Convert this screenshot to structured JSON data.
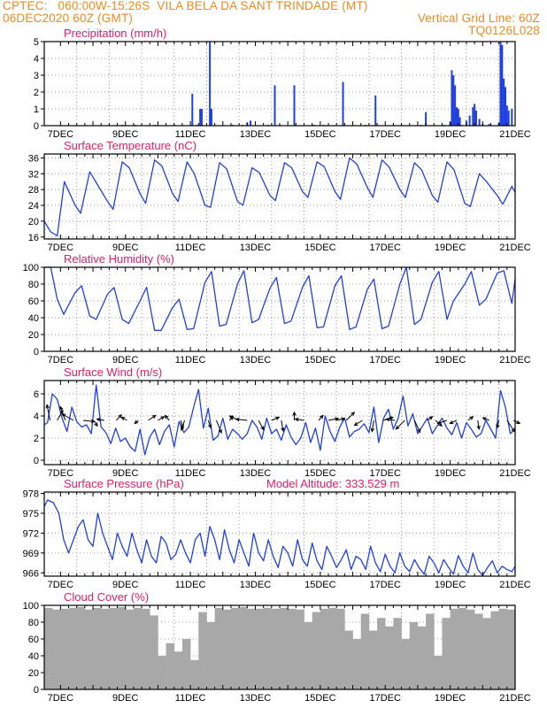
{
  "header": {
    "line1_left": "CPTEC:   060:00W-15:26S  VILA BELA DA SANT TRINDADE (MT)",
    "line2_left": "06DEC2020 60Z (GMT)",
    "line2_right": "Vertical Grid Line: 60Z",
    "line3_right": "TQ0126L028"
  },
  "colors": {
    "header": "#f08a1e",
    "panel_title": "#e0206a",
    "series": "#2040e0",
    "cloud": "#a8a8a8",
    "arrow": "#000000"
  },
  "x_axis": {
    "tick_labels": [
      "7DEC",
      "9DEC",
      "11DEC",
      "13DEC",
      "15DEC",
      "17DEC",
      "19DEC",
      "21DEC"
    ],
    "tick_days": [
      7,
      9,
      11,
      13,
      15,
      17,
      19,
      21
    ],
    "range_days": [
      6.5,
      21.0
    ]
  },
  "chart_data": [
    {
      "type": "bar",
      "title": "Precipitation (mm/h)",
      "ylim": [
        0,
        5
      ],
      "yticks": [
        0,
        1,
        2,
        3,
        4,
        5
      ],
      "x_days": [
        8.9,
        9.3,
        9.9,
        10.5,
        11.06,
        11.2,
        11.3,
        11.35,
        11.6,
        11.65,
        12.3,
        12.6,
        12.75,
        12.85,
        13.4,
        13.6,
        14.2,
        14.8,
        15.1,
        15.7,
        16.4,
        16.7,
        17.5,
        18.1,
        18.25,
        18.8,
        19.0,
        19.05,
        19.1,
        19.15,
        19.2,
        19.25,
        19.3,
        19.35,
        19.5,
        19.6,
        19.7,
        19.75,
        19.8,
        19.9,
        20.0,
        20.2,
        20.5,
        20.55,
        20.6,
        20.65,
        20.7,
        20.75,
        20.8,
        20.9
      ],
      "values": [
        0.05,
        0.05,
        0.05,
        0.05,
        1.9,
        0.05,
        1.0,
        1.0,
        5.0,
        1.0,
        0.05,
        0.05,
        0.2,
        0.3,
        0.05,
        2.4,
        2.4,
        0.05,
        0.05,
        2.6,
        0.05,
        1.8,
        0.05,
        0.05,
        0.8,
        0.05,
        0.2,
        3.3,
        3.0,
        2.4,
        1.1,
        1.0,
        0.5,
        0.05,
        0.3,
        0.6,
        1.1,
        1.3,
        0.9,
        0.4,
        0.1,
        0.1,
        0.2,
        5.0,
        4.8,
        2.8,
        2.3,
        1.2,
        0.9,
        1.0
      ]
    },
    {
      "type": "line",
      "title": "Surface Temperature (nC)",
      "ylim": [
        15.5,
        37
      ],
      "yticks": [
        16,
        20,
        24,
        28,
        32,
        36
      ],
      "x_days": [
        6.5,
        6.7,
        6.9,
        7.12,
        7.45,
        7.62,
        7.9,
        8.12,
        8.45,
        8.62,
        8.9,
        9.12,
        9.45,
        9.62,
        9.9,
        10.12,
        10.45,
        10.62,
        10.9,
        11.12,
        11.45,
        11.62,
        11.9,
        12.12,
        12.45,
        12.62,
        12.9,
        13.12,
        13.45,
        13.62,
        13.9,
        14.12,
        14.45,
        14.62,
        14.9,
        15.12,
        15.45,
        15.62,
        15.9,
        16.12,
        16.45,
        16.62,
        16.9,
        17.12,
        17.45,
        17.62,
        17.9,
        18.12,
        18.45,
        18.62,
        18.9,
        19.12,
        19.45,
        19.62,
        19.9,
        20.12,
        20.45,
        20.62,
        20.9,
        21.0
      ],
      "values": [
        20.0,
        17.3,
        16.3,
        30.0,
        24.0,
        22.0,
        32.5,
        29.5,
        25.0,
        23.0,
        35.0,
        33.5,
        27.0,
        24.5,
        35.5,
        34.0,
        27.0,
        25.0,
        35.0,
        32.0,
        24.0,
        23.5,
        34.8,
        33.2,
        25.0,
        24.0,
        33.5,
        32.3,
        26.5,
        25.2,
        34.8,
        33.5,
        27.5,
        26.0,
        35.0,
        33.8,
        27.5,
        25.5,
        36.0,
        34.5,
        28.5,
        26.0,
        35.5,
        33.7,
        28.0,
        26.0,
        34.8,
        33.0,
        26.5,
        24.8,
        35.0,
        33.0,
        24.5,
        23.7,
        32.0,
        30.0,
        26.5,
        24.3,
        28.8,
        27.3
      ]
    },
    {
      "type": "line",
      "title": "Relative Humidity (%)",
      "ylim": [
        0,
        100
      ],
      "yticks": [
        0,
        20,
        40,
        60,
        80,
        100
      ],
      "x_days": [
        6.5,
        6.7,
        6.9,
        7.1,
        7.45,
        7.65,
        7.9,
        8.1,
        8.45,
        8.65,
        8.9,
        9.1,
        9.45,
        9.65,
        9.9,
        10.1,
        10.45,
        10.65,
        10.9,
        11.1,
        11.45,
        11.65,
        11.9,
        12.1,
        12.45,
        12.65,
        12.9,
        13.1,
        13.45,
        13.65,
        13.9,
        14.1,
        14.45,
        14.65,
        14.9,
        15.1,
        15.45,
        15.65,
        15.9,
        16.1,
        16.45,
        16.65,
        16.9,
        17.1,
        17.45,
        17.65,
        17.9,
        18.1,
        18.45,
        18.65,
        18.9,
        19.1,
        19.45,
        19.65,
        19.9,
        20.1,
        20.45,
        20.65,
        20.9,
        21.0
      ],
      "values": [
        100,
        100,
        62,
        44,
        70,
        78,
        42,
        38,
        68,
        76,
        38,
        33,
        60,
        76,
        25,
        25,
        52,
        62,
        26,
        27,
        82,
        95,
        30,
        32,
        80,
        96,
        34,
        38,
        75,
        88,
        33,
        36,
        76,
        90,
        28,
        29,
        78,
        90,
        26,
        29,
        74,
        86,
        27,
        30,
        80,
        100,
        32,
        38,
        82,
        95,
        38,
        60,
        80,
        95,
        55,
        62,
        93,
        96,
        57,
        86
      ]
    },
    {
      "type": "line",
      "title": "Surface Wind (m/s)",
      "ylim": [
        -0.4,
        7.2
      ],
      "yticks": [
        0,
        2,
        4,
        6
      ],
      "x_days": [
        6.5,
        6.6,
        6.75,
        6.9,
        7.05,
        7.2,
        7.35,
        7.5,
        7.65,
        7.8,
        7.95,
        8.1,
        8.25,
        8.4,
        8.55,
        8.7,
        8.85,
        9.0,
        9.15,
        9.3,
        9.45,
        9.6,
        9.75,
        9.9,
        10.05,
        10.2,
        10.35,
        10.5,
        10.65,
        10.8,
        10.95,
        11.1,
        11.25,
        11.4,
        11.55,
        11.7,
        11.85,
        12.0,
        12.15,
        12.3,
        12.45,
        12.6,
        12.75,
        12.9,
        13.05,
        13.2,
        13.35,
        13.5,
        13.65,
        13.8,
        13.95,
        14.1,
        14.25,
        14.4,
        14.55,
        14.7,
        14.85,
        15.0,
        15.15,
        15.3,
        15.45,
        15.6,
        15.75,
        15.9,
        16.05,
        16.2,
        16.35,
        16.5,
        16.65,
        16.8,
        16.95,
        17.1,
        17.25,
        17.4,
        17.55,
        17.7,
        17.85,
        18.0,
        18.15,
        18.3,
        18.45,
        18.6,
        18.75,
        18.9,
        19.05,
        19.2,
        19.35,
        19.5,
        19.65,
        19.8,
        19.95,
        20.1,
        20.25,
        20.4,
        20.55,
        20.7,
        20.85,
        21.0
      ],
      "values": [
        3.2,
        3.4,
        6.0,
        5.5,
        3.8,
        2.6,
        4.8,
        3.5,
        3.0,
        3.2,
        2.4,
        6.8,
        3.0,
        2.5,
        1.5,
        2.9,
        1.7,
        2.0,
        1.2,
        0.8,
        2.8,
        0.5,
        2.1,
        2.8,
        1.4,
        2.6,
        3.2,
        1.2,
        3.5,
        2.5,
        3.0,
        4.8,
        6.4,
        2.9,
        4.7,
        1.8,
        2.2,
        3.8,
        1.9,
        2.8,
        2.4,
        1.9,
        2.4,
        3.6,
        3.0,
        1.9,
        3.8,
        2.4,
        2.8,
        1.8,
        3.2,
        2.1,
        1.4,
        2.0,
        3.4,
        1.6,
        2.9,
        0.9,
        4.0,
        2.6,
        1.7,
        3.0,
        3.8,
        2.1,
        2.6,
        2.8,
        3.3,
        2.5,
        4.8,
        1.6,
        3.8,
        4.6,
        2.8,
        3.8,
        5.8,
        3.1,
        4.2,
        2.4,
        3.1,
        3.8,
        2.4,
        3.1,
        3.8,
        2.9,
        2.3,
        3.4,
        2.0,
        3.4,
        2.8,
        2.1,
        2.4,
        3.6,
        2.8,
        2.0,
        6.3,
        4.8,
        2.4,
        2.8
      ],
      "arrows": [
        {
          "day": 6.68,
          "u": -0.5,
          "v": 2.5
        },
        {
          "day": 6.9,
          "u": 0.9,
          "v": 1.6
        },
        {
          "day": 7.15,
          "u": -0.8,
          "v": 2.2
        },
        {
          "day": 7.4,
          "u": -1.8,
          "v": 1.0
        },
        {
          "day": 7.7,
          "u": 1.8,
          "v": -0.2
        },
        {
          "day": 8.02,
          "u": 0.6,
          "v": -0.9
        },
        {
          "day": 8.35,
          "u": -1.2,
          "v": 0.2
        },
        {
          "day": 8.72,
          "u": 0.8,
          "v": 0.9
        },
        {
          "day": 9.05,
          "u": -0.9,
          "v": 0.5
        },
        {
          "day": 9.4,
          "u": -0.6,
          "v": -0.5
        },
        {
          "day": 9.7,
          "u": 1.2,
          "v": 0.8
        },
        {
          "day": 10.0,
          "u": 1.0,
          "v": 0.6
        },
        {
          "day": 10.35,
          "u": -0.7,
          "v": 0.8
        },
        {
          "day": 10.7,
          "u": 0.4,
          "v": -1.2
        },
        {
          "day": 10.82,
          "u": -0.5,
          "v": -1.6
        },
        {
          "day": 11.55,
          "u": 0.4,
          "v": -1.2
        },
        {
          "day": 11.8,
          "u": 0.8,
          "v": -2.0
        },
        {
          "day": 12.2,
          "u": 0.6,
          "v": 0.6
        },
        {
          "day": 12.5,
          "u": -1.5,
          "v": 0.7
        },
        {
          "day": 12.75,
          "u": -1.8,
          "v": 0.2
        },
        {
          "day": 13.1,
          "u": 0.8,
          "v": -1.5
        },
        {
          "day": 13.5,
          "u": 1.2,
          "v": 0.5
        },
        {
          "day": 13.8,
          "u": 0.3,
          "v": -1.7
        },
        {
          "day": 14.2,
          "u": 0.0,
          "v": 1.3
        },
        {
          "day": 14.5,
          "u": -1.4,
          "v": 0.2
        },
        {
          "day": 14.95,
          "u": 0.7,
          "v": 0.8
        },
        {
          "day": 15.25,
          "u": 1.6,
          "v": 0.3
        },
        {
          "day": 15.5,
          "u": 1.3,
          "v": 0.3
        },
        {
          "day": 15.8,
          "u": 1.3,
          "v": 1.3
        },
        {
          "day": 16.3,
          "u": -1.3,
          "v": -0.8
        },
        {
          "day": 16.65,
          "u": -0.3,
          "v": -1.8
        },
        {
          "day": 16.95,
          "u": 1.5,
          "v": 0.5
        },
        {
          "day": 17.3,
          "u": -1.4,
          "v": 0.2
        },
        {
          "day": 17.6,
          "u": -1.4,
          "v": -1.4
        },
        {
          "day": 17.9,
          "u": 0.9,
          "v": -1.9
        },
        {
          "day": 18.3,
          "u": 0.8,
          "v": 0.6
        },
        {
          "day": 18.55,
          "u": 1.0,
          "v": -0.9
        },
        {
          "day": 18.9,
          "u": -1.5,
          "v": -0.5
        },
        {
          "day": 19.2,
          "u": -1.1,
          "v": -0.5
        },
        {
          "day": 19.55,
          "u": 0.8,
          "v": 0.6
        },
        {
          "day": 19.85,
          "u": 0.2,
          "v": -1.4
        },
        {
          "day": 20.2,
          "u": -1.0,
          "v": 0.4
        },
        {
          "day": 20.5,
          "u": -0.3,
          "v": -1.2
        },
        {
          "day": 20.75,
          "u": 1.2,
          "v": -1.8
        },
        {
          "day": 20.95,
          "u": 1.0,
          "v": -0.5
        }
      ]
    },
    {
      "type": "line",
      "title": "Surface Pressure (hPa)",
      "subtitle": "Model Altitude: 333.529 m",
      "ylim": [
        965.5,
        978.2
      ],
      "yticks": [
        966,
        969,
        972,
        975,
        978
      ],
      "ytick_labels": [
        "966",
        "969",
        "972",
        "975",
        "978"
      ],
      "x_days": [
        6.5,
        6.6,
        6.78,
        6.95,
        7.1,
        7.25,
        7.4,
        7.55,
        7.7,
        7.85,
        8.0,
        8.15,
        8.3,
        8.45,
        8.6,
        8.75,
        8.9,
        9.05,
        9.2,
        9.35,
        9.5,
        9.65,
        9.8,
        9.95,
        10.1,
        10.25,
        10.4,
        10.55,
        10.7,
        10.85,
        11.0,
        11.15,
        11.3,
        11.45,
        11.6,
        11.75,
        11.9,
        12.05,
        12.2,
        12.35,
        12.5,
        12.65,
        12.8,
        12.95,
        13.1,
        13.25,
        13.4,
        13.55,
        13.7,
        13.85,
        14.0,
        14.15,
        14.3,
        14.45,
        14.6,
        14.75,
        14.9,
        15.05,
        15.2,
        15.35,
        15.5,
        15.65,
        15.8,
        15.95,
        16.1,
        16.25,
        16.4,
        16.55,
        16.7,
        16.85,
        17.0,
        17.15,
        17.3,
        17.45,
        17.6,
        17.75,
        17.9,
        18.05,
        18.2,
        18.35,
        18.5,
        18.65,
        18.8,
        18.95,
        19.1,
        19.25,
        19.4,
        19.55,
        19.7,
        19.85,
        20.0,
        20.15,
        20.3,
        20.45,
        20.6,
        20.75,
        20.9,
        21.0
      ],
      "values": [
        976.0,
        977.0,
        976.6,
        975.0,
        971.0,
        969.0,
        971.0,
        973.0,
        974.0,
        971.0,
        970.0,
        975.0,
        972.0,
        970.0,
        968.0,
        972.0,
        970.0,
        968.5,
        972.0,
        969.5,
        967.5,
        971.0,
        968.5,
        967.5,
        971.5,
        970.5,
        968.0,
        968.8,
        971.0,
        969.0,
        967.5,
        971.0,
        972.0,
        968.5,
        973.0,
        971.0,
        968.0,
        972.5,
        969.5,
        967.5,
        971.0,
        969.0,
        967.0,
        972.0,
        969.0,
        967.8,
        971.0,
        968.5,
        966.8,
        970.0,
        969.0,
        967.0,
        971.0,
        968.0,
        967.0,
        970.5,
        967.8,
        966.5,
        970.0,
        968.5,
        966.8,
        968.0,
        969.5,
        966.5,
        968.5,
        968.0,
        966.5,
        970.0,
        967.5,
        966.2,
        968.8,
        967.0,
        966.0,
        969.0,
        967.0,
        966.2,
        968.0,
        966.7,
        965.8,
        968.5,
        967.5,
        966.0,
        968.0,
        966.8,
        965.8,
        968.6,
        967.0,
        966.0,
        969.0,
        966.5,
        965.6,
        966.8,
        967.8,
        966.0,
        967.0,
        966.5,
        966.2,
        967.0
      ]
    },
    {
      "type": "bar",
      "title": "Cloud Cover (%)",
      "ylim": [
        0,
        100
      ],
      "yticks": [
        0,
        20,
        40,
        60,
        80,
        100
      ],
      "x_days": [
        6.5,
        6.75,
        7.0,
        7.25,
        7.5,
        7.75,
        8.0,
        8.25,
        8.5,
        8.75,
        9.0,
        9.25,
        9.5,
        9.75,
        10.0,
        10.25,
        10.5,
        10.75,
        11.0,
        11.25,
        11.5,
        11.75,
        12.0,
        12.25,
        12.5,
        12.75,
        13.0,
        13.25,
        13.5,
        13.75,
        14.0,
        14.25,
        14.5,
        14.75,
        15.0,
        15.25,
        15.5,
        15.75,
        16.0,
        16.25,
        16.5,
        16.75,
        17.0,
        17.25,
        17.5,
        17.75,
        18.0,
        18.25,
        18.5,
        18.75,
        19.0,
        19.25,
        19.5,
        19.75,
        20.0,
        20.25,
        20.5,
        20.75
      ],
      "values": [
        97,
        95,
        96,
        97,
        98,
        95,
        97,
        96,
        97,
        98,
        95,
        97,
        96,
        88,
        40,
        55,
        45,
        60,
        35,
        92,
        80,
        97,
        95,
        97,
        98,
        96,
        96,
        97,
        96,
        97,
        96,
        95,
        80,
        92,
        96,
        97,
        96,
        70,
        60,
        90,
        70,
        85,
        75,
        85,
        60,
        80,
        75,
        90,
        40,
        85,
        96,
        97,
        95,
        90,
        85,
        93,
        96,
        95
      ]
    }
  ]
}
